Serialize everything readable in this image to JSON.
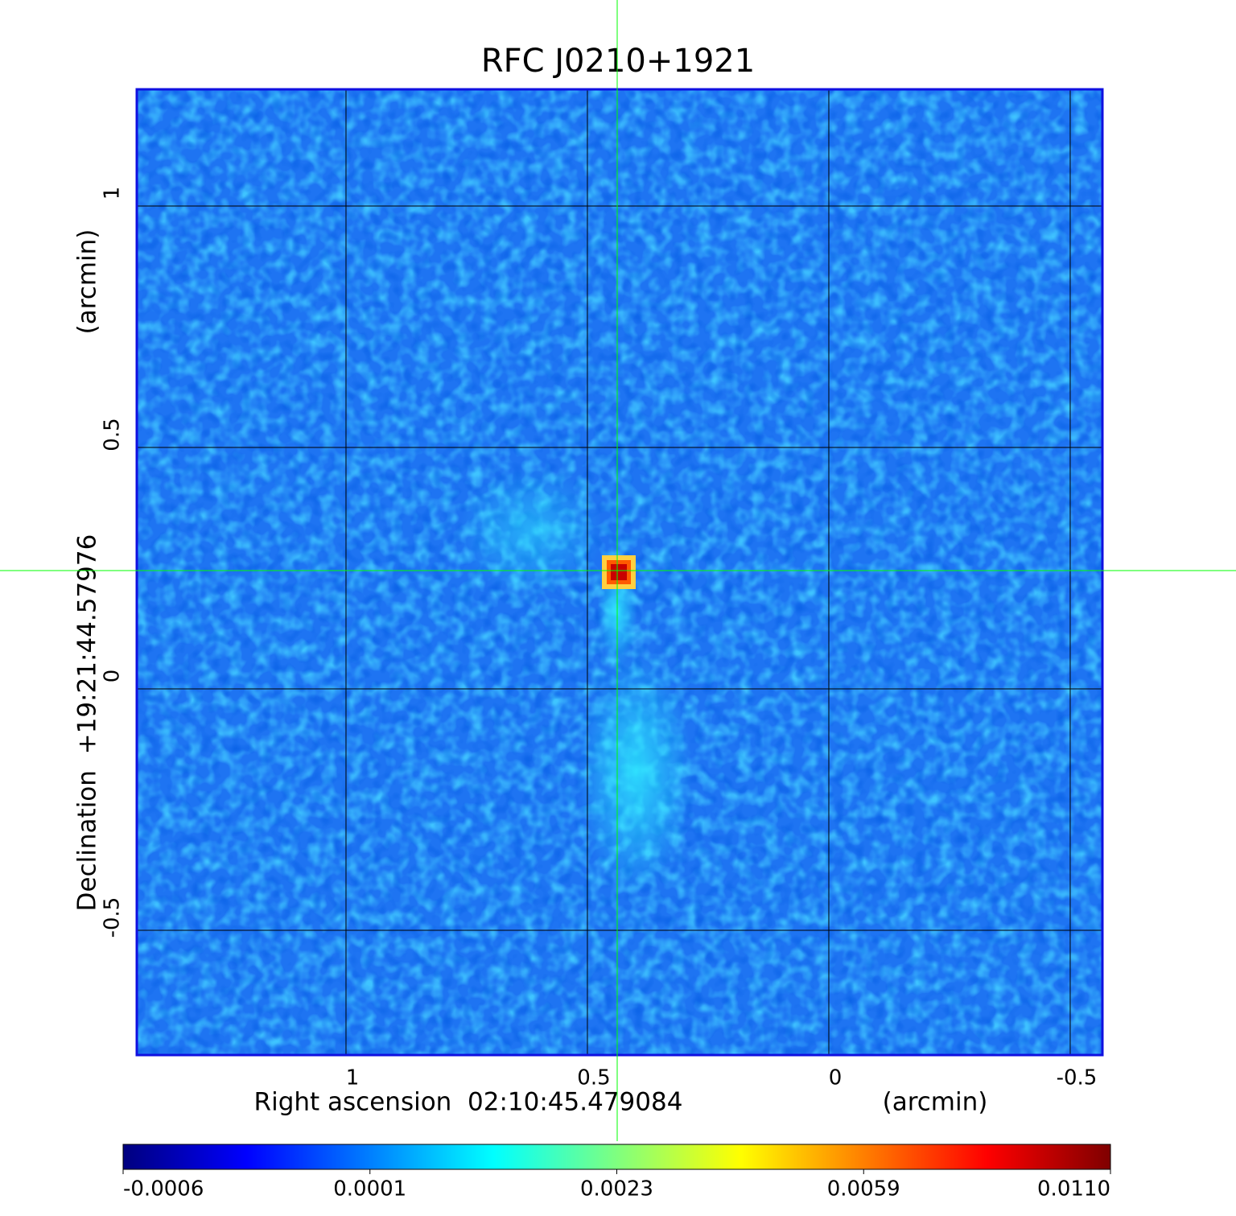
{
  "chart_data": {
    "type": "image",
    "title": "RFC J0210+1921",
    "title_color": "#1010d0",
    "xlabel": "Right ascension  02:10:45.479084",
    "xunit": "(arcmin)",
    "ylabel": "Declination  +19:21:44.57976",
    "yunit": "(arcmin)",
    "xlim": [
      1.4333,
      -0.5667
    ],
    "xticks": [
      1.0,
      0.5,
      0.0,
      -0.5
    ],
    "ylim": [
      -0.7583,
      1.2417
    ],
    "yticks": [
      1.0,
      0.5,
      0.0,
      -0.5
    ],
    "grid": true,
    "crosshair": {
      "x": 0.4383,
      "y": 0.245,
      "color": "#00ff00"
    },
    "colorbar": {
      "ticks": [
        -0.0006,
        0.0001,
        0.0023,
        0.0059,
        {
          "value": 0.011,
          "label": "0.0110"
        }
      ],
      "colormap": [
        "#00007f",
        "#0000ff",
        "#007fff",
        "#00ffff",
        "#7fff7f",
        "#ffff00",
        "#ff7f00",
        "#ff0000",
        "#7f0000"
      ]
    }
  }
}
